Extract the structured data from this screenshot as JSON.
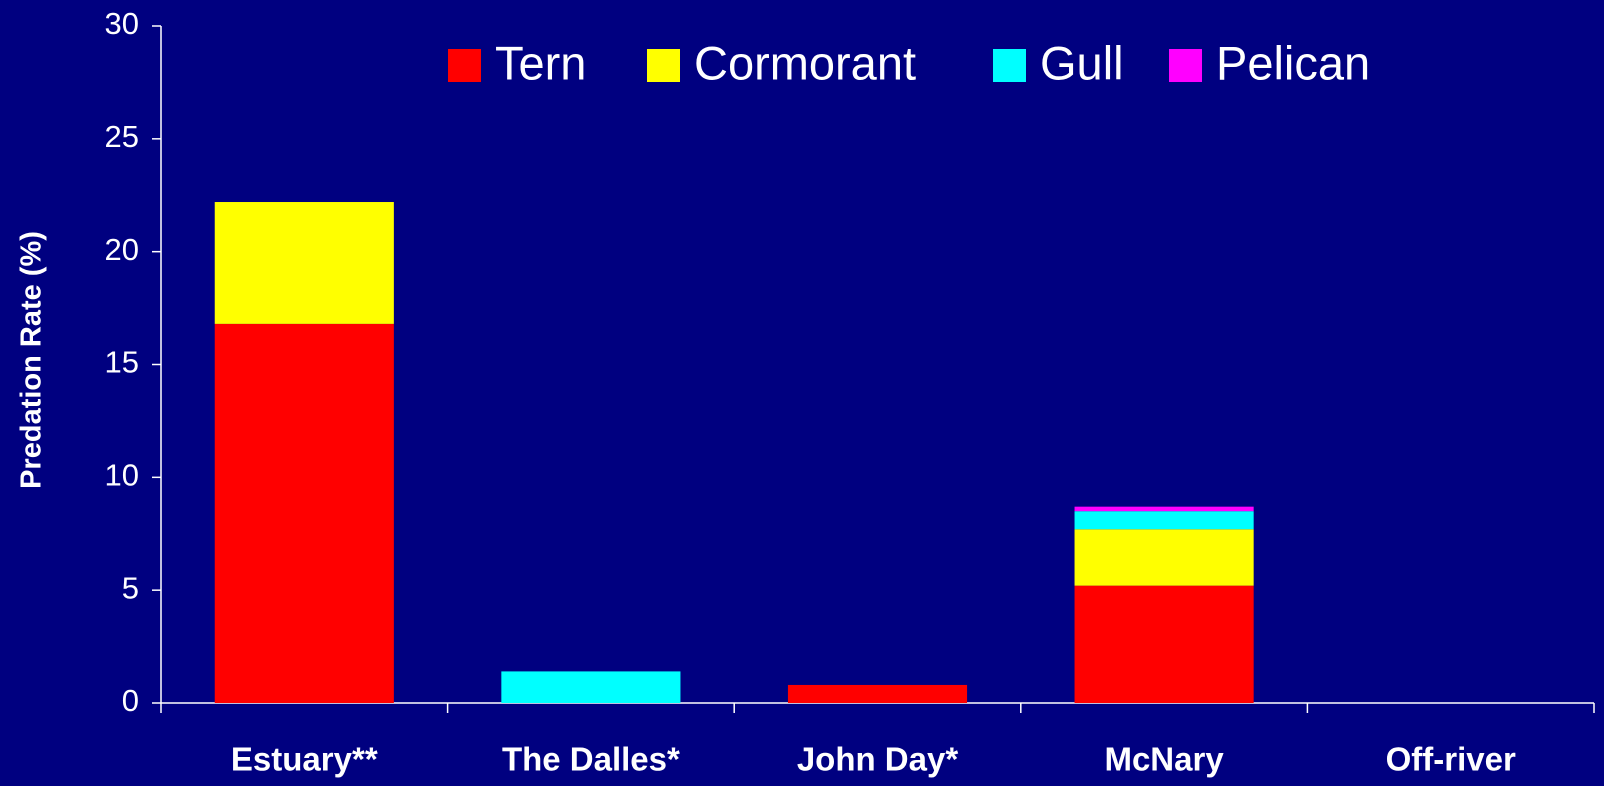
{
  "chart_data": {
    "type": "stacked_bar",
    "y_label": "Predation Rate (%)",
    "categories": [
      "Estuary**",
      "The Dalles*",
      "John Day*",
      "McNary",
      "Off-river"
    ],
    "series": [
      {
        "name": "Tern",
        "color": "#ff0000",
        "values": [
          16.8,
          0,
          0.8,
          5.2,
          0
        ]
      },
      {
        "name": "Cormorant",
        "color": "#ffff00",
        "values": [
          5.4,
          0,
          0,
          2.5,
          0
        ]
      },
      {
        "name": "Gull",
        "color": "#00ffff",
        "values": [
          0,
          1.4,
          0,
          0.8,
          0
        ]
      },
      {
        "name": "Pelican",
        "color": "#ff00ff",
        "values": [
          0,
          0,
          0,
          0.2,
          0
        ]
      }
    ],
    "ylim": [
      0,
      30
    ],
    "yticks": [
      0,
      5,
      10,
      15,
      20,
      25,
      30
    ],
    "legend": "top",
    "background": "#000080"
  }
}
